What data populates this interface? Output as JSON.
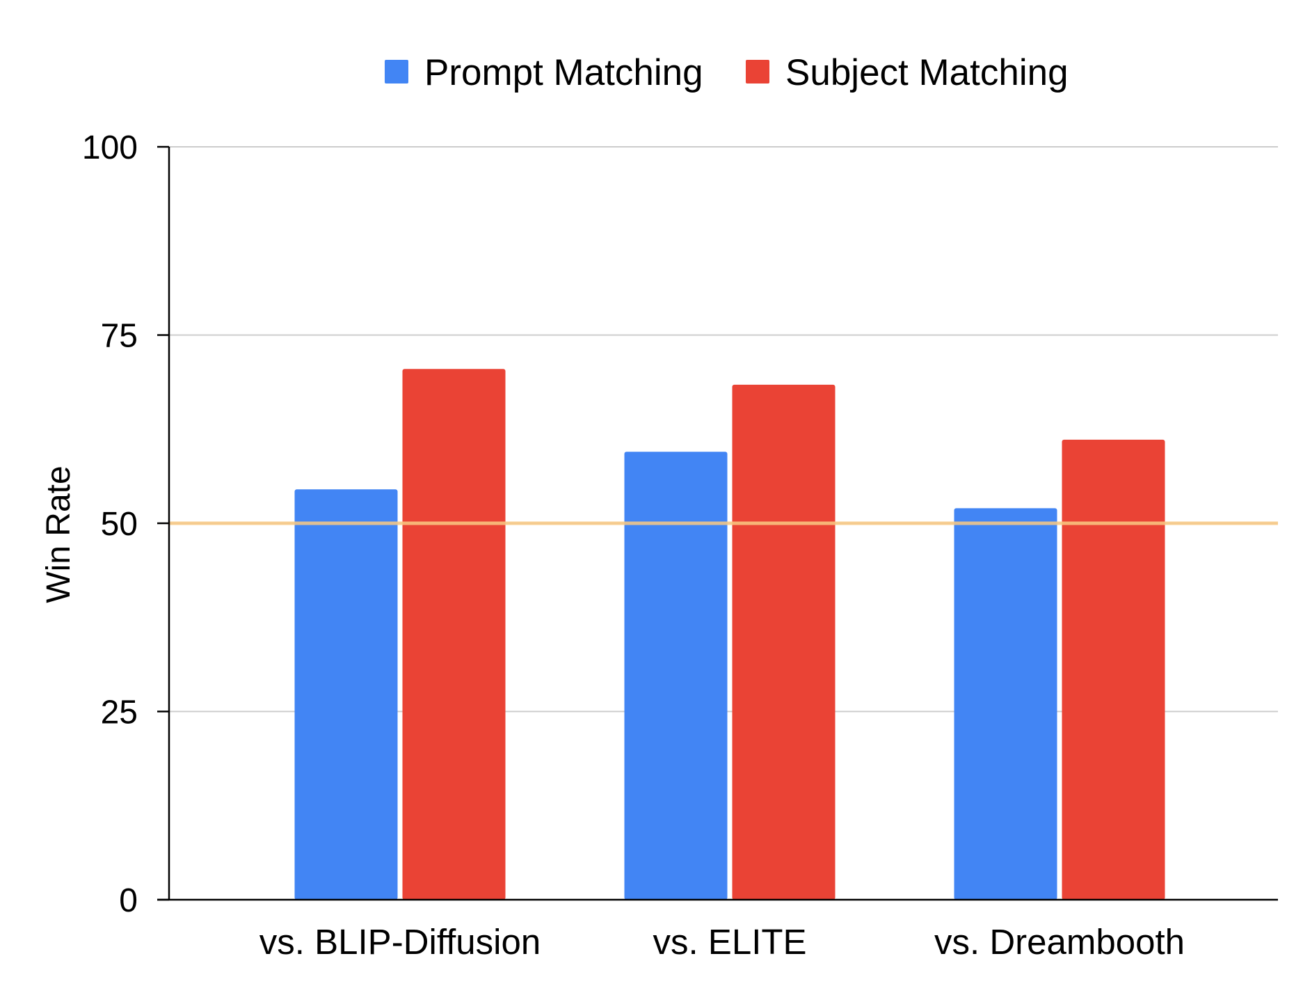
{
  "chart_data": {
    "type": "bar",
    "title": "",
    "xlabel": "",
    "ylabel": "Win Rate",
    "categories": [
      "vs. BLIP-Diffusion",
      "vs. ELITE",
      "vs. Dreambooth"
    ],
    "series": [
      {
        "name": "Prompt Matching",
        "color": "#4285f4",
        "values": [
          54.5,
          59.5,
          52.0
        ]
      },
      {
        "name": "Subject Matching",
        "color": "#ea4335",
        "values": [
          70.5,
          68.4,
          61.1
        ]
      }
    ],
    "ylim": [
      0,
      100
    ],
    "yticks": [
      0,
      25,
      50,
      75,
      100
    ],
    "grid": true,
    "legend": "top-center",
    "reference_line": {
      "value": 50,
      "color": "#f9c982"
    }
  }
}
